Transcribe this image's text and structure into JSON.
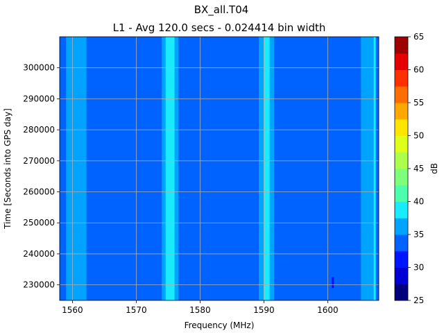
{
  "chart_data": {
    "type": "heatmap",
    "title": "BX_all.T04",
    "subtitle": "L1 - Avg 120.0 secs - 0.024414 bin width",
    "xlabel": "Frequency (MHz)",
    "ylabel": "Time [Seconds into GPS day]",
    "xlim": [
      1558,
      1608
    ],
    "ylim": [
      225000,
      310000
    ],
    "xticks": [
      1560,
      1570,
      1580,
      1590,
      1600
    ],
    "yticks": [
      230000,
      240000,
      250000,
      260000,
      270000,
      280000,
      290000,
      300000
    ],
    "xtick_labels": [
      "1560",
      "1570",
      "1580",
      "1590",
      "1600"
    ],
    "ytick_labels": [
      "230000",
      "240000",
      "250000",
      "260000",
      "270000",
      "280000",
      "290000",
      "300000"
    ],
    "grid": true,
    "background_level": [
      32.5,
      35
    ],
    "bands": [
      {
        "x0": 1559.0,
        "x1": 1562.2,
        "level": [
          35,
          37.5
        ]
      },
      {
        "x0": 1574.0,
        "x1": 1576.6,
        "level": [
          35,
          37.5
        ]
      },
      {
        "x0": 1574.6,
        "x1": 1576.0,
        "level": [
          37.5,
          40
        ]
      },
      {
        "x0": 1589.2,
        "x1": 1591.6,
        "level": [
          35,
          37.5
        ]
      },
      {
        "x0": 1590.0,
        "x1": 1590.9,
        "level": [
          37.5,
          40
        ]
      },
      {
        "x0": 1605.2,
        "x1": 1606.8,
        "level": [
          35,
          37.5
        ]
      },
      {
        "x0": 1606.8,
        "x1": 1607.6,
        "level": [
          35,
          37.5
        ]
      },
      {
        "x0": 1607.2,
        "x1": 1607.5,
        "level": [
          37.5,
          40
        ]
      }
    ],
    "features": [
      {
        "x": 1600.8,
        "y0": 229000,
        "y1": 232500,
        "level": [
          30,
          32.5
        ]
      }
    ],
    "colorbar": {
      "label": "dB",
      "levels": [
        25,
        27.5,
        30,
        32.5,
        35,
        37.5,
        40,
        42.5,
        45,
        47.5,
        50,
        52.5,
        55,
        57.5,
        60,
        62.5,
        65
      ],
      "tick_values": [
        25,
        30,
        35,
        40,
        45,
        50,
        55,
        60,
        65
      ],
      "tick_labels": [
        "25",
        "30",
        "35",
        "40",
        "45",
        "50",
        "55",
        "60",
        "65"
      ],
      "colors": [
        "#00007f",
        "#0000d4",
        "#0015ff",
        "#0062ff",
        "#00a4ff",
        "#19ecff",
        "#4bffac",
        "#7dff7a",
        "#acff4b",
        "#ddff19",
        "#ffe500",
        "#ffa900",
        "#ff6c00",
        "#ff3000",
        "#e40000",
        "#9f0000"
      ]
    }
  }
}
